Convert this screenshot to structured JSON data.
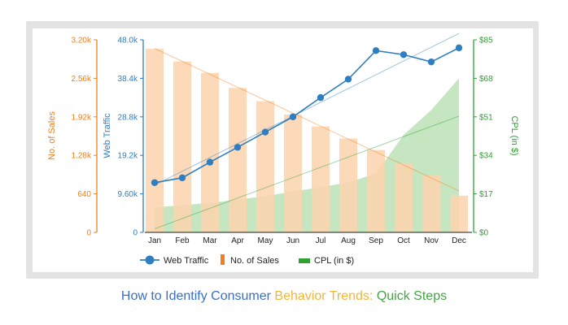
{
  "colors": {
    "web_traffic": "#2e7ec1",
    "sales_bar": "#fbd3ad",
    "sales_axis": "#f07f1c",
    "cpl_fill": "#bfe3b9",
    "cpl_axis": "#2ea132",
    "frame": "#e3e3e3",
    "caption_blue": "#3b6fc4",
    "caption_gold": "#f2b53a",
    "caption_green": "#46a447"
  },
  "chart_data": {
    "type": "bar+line+area",
    "categories": [
      "Jan",
      "Feb",
      "Mar",
      "Apr",
      "May",
      "Jun",
      "Jul",
      "Aug",
      "Sep",
      "Oct",
      "Nov",
      "Dec"
    ],
    "axes": {
      "sales": {
        "label": "No. of Sales",
        "ylim": [
          0,
          3200
        ],
        "ticks": [
          "0",
          "640",
          "1.28k",
          "1.92k",
          "2.56k",
          "3.20k"
        ]
      },
      "traffic": {
        "label": "Web Traffic",
        "ylim": [
          0,
          48000
        ],
        "ticks": [
          "0",
          "9.60k",
          "19.2k",
          "28.8k",
          "38.4k",
          "48.0k"
        ]
      },
      "cpl": {
        "label": "CPL (in $)",
        "ylim": [
          0,
          85
        ],
        "ticks": [
          "$0",
          "$17",
          "$34",
          "$51",
          "$68",
          "$85"
        ]
      }
    },
    "series": [
      {
        "name": "Web Traffic",
        "type": "line",
        "axis": "traffic",
        "values": [
          12400,
          13600,
          17500,
          21200,
          25000,
          28800,
          33600,
          38200,
          45300,
          44300,
          42500,
          46000
        ]
      },
      {
        "name": "No. of Sales",
        "type": "bar",
        "axis": "sales",
        "values": [
          3050,
          2840,
          2650,
          2400,
          2180,
          1960,
          1760,
          1560,
          1370,
          1150,
          950,
          610
        ]
      },
      {
        "name": "CPL (in $)",
        "type": "area",
        "axis": "cpl",
        "values": [
          11,
          12,
          13,
          14.5,
          16,
          18,
          20,
          22,
          26,
          43,
          54,
          68
        ]
      }
    ],
    "trendlines": true,
    "legend_position": "bottom",
    "grid": false
  },
  "legend": [
    {
      "label": "Web Traffic",
      "key": "web_traffic"
    },
    {
      "label": "No. of Sales",
      "key": "sales"
    },
    {
      "label": "CPL (in $)",
      "key": "cpl"
    }
  ],
  "caption": {
    "part1": "How to Identify Consumer ",
    "part2": "Behavior Trends: ",
    "part3": "Quick Steps"
  }
}
